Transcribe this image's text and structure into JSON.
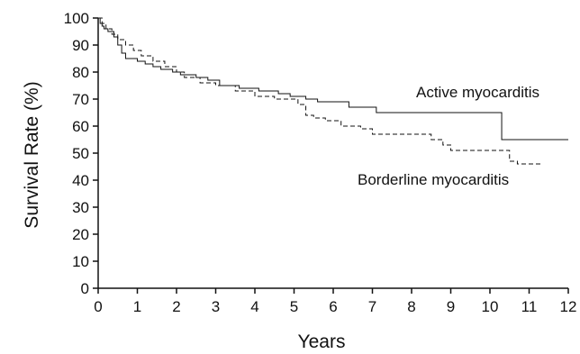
{
  "chart_data": {
    "type": "line",
    "xlabel": "Years",
    "ylabel": "Survival Rate (%)",
    "xlim": [
      0,
      12
    ],
    "ylim": [
      0,
      100
    ],
    "x_ticks": [
      "0",
      "1",
      "2",
      "3",
      "4",
      "5",
      "6",
      "7",
      "8",
      "9",
      "10",
      "11",
      "12"
    ],
    "y_ticks": [
      "0",
      "10",
      "20",
      "30",
      "40",
      "50",
      "60",
      "70",
      "80",
      "90",
      "100"
    ],
    "grid": false,
    "series": [
      {
        "name": "Active myocarditis",
        "line_style": "solid",
        "x": [
          0,
          0.05,
          0.1,
          0.15,
          0.25,
          0.4,
          0.5,
          0.6,
          0.7,
          1.0,
          1.2,
          1.4,
          1.6,
          1.9,
          2.1,
          2.5,
          2.8,
          3.1,
          3.6,
          4.1,
          4.6,
          4.9,
          5.3,
          5.6,
          6.4,
          7.1,
          10.3,
          12.0
        ],
        "y": [
          100,
          98,
          97,
          96,
          95,
          93,
          90,
          87,
          85,
          84,
          83,
          82,
          81,
          80,
          79,
          78,
          77,
          75,
          74,
          73,
          72,
          71,
          70,
          69,
          67,
          65,
          55,
          55
        ]
      },
      {
        "name": "Borderline myocarditis",
        "line_style": "dashed",
        "x": [
          0,
          0.1,
          0.2,
          0.35,
          0.5,
          0.7,
          0.9,
          1.1,
          1.4,
          1.7,
          2.0,
          2.2,
          2.6,
          3.0,
          3.5,
          4.0,
          4.5,
          5.1,
          5.3,
          5.5,
          5.8,
          6.2,
          6.7,
          7.0,
          7.3,
          8.5,
          8.8,
          9.0,
          10.2,
          10.5,
          10.7,
          11.3
        ],
        "y": [
          100,
          98,
          96,
          94,
          92,
          90,
          88,
          86,
          84,
          82,
          80,
          78,
          76,
          75,
          73,
          71,
          70,
          68,
          64,
          63,
          62,
          60,
          59,
          57,
          57,
          55,
          53,
          51,
          51,
          47,
          46,
          46
        ]
      }
    ],
    "annotations": [
      "Active myocarditis",
      "Borderline myocarditis"
    ]
  }
}
